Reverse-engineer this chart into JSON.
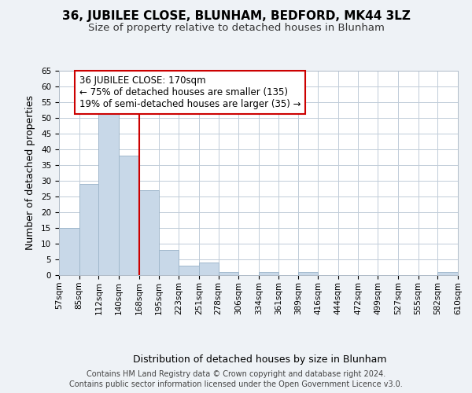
{
  "title": "36, JUBILEE CLOSE, BLUNHAM, BEDFORD, MK44 3LZ",
  "subtitle": "Size of property relative to detached houses in Blunham",
  "xlabel": "Distribution of detached houses by size in Blunham",
  "ylabel": "Number of detached properties",
  "bin_edges": [
    57,
    85,
    112,
    140,
    168,
    195,
    223,
    251,
    278,
    306,
    334,
    361,
    389,
    416,
    444,
    472,
    499,
    527,
    555,
    582,
    610
  ],
  "bar_heights": [
    15,
    29,
    53,
    38,
    27,
    8,
    3,
    4,
    1,
    0,
    1,
    0,
    1,
    0,
    0,
    0,
    0,
    0,
    0,
    1
  ],
  "bar_color": "#c8d8e8",
  "bar_edge_color": "#a0b8cc",
  "vline_x": 168,
  "vline_color": "#cc0000",
  "annotation_text": "36 JUBILEE CLOSE: 170sqm\n← 75% of detached houses are smaller (135)\n19% of semi-detached houses are larger (35) →",
  "annotation_box_color": "#ffffff",
  "annotation_box_edge": "#cc0000",
  "ylim": [
    0,
    65
  ],
  "yticks": [
    0,
    5,
    10,
    15,
    20,
    25,
    30,
    35,
    40,
    45,
    50,
    55,
    60,
    65
  ],
  "tick_labels": [
    "57sqm",
    "85sqm",
    "112sqm",
    "140sqm",
    "168sqm",
    "195sqm",
    "223sqm",
    "251sqm",
    "278sqm",
    "306sqm",
    "334sqm",
    "361sqm",
    "389sqm",
    "416sqm",
    "444sqm",
    "472sqm",
    "499sqm",
    "527sqm",
    "555sqm",
    "582sqm",
    "610sqm"
  ],
  "footer_line1": "Contains HM Land Registry data © Crown copyright and database right 2024.",
  "footer_line2": "Contains public sector information licensed under the Open Government Licence v3.0.",
  "bg_color": "#eef2f6",
  "plot_bg_color": "#ffffff",
  "title_fontsize": 11,
  "subtitle_fontsize": 9.5,
  "axis_label_fontsize": 9,
  "tick_fontsize": 7.5,
  "footer_fontsize": 7
}
